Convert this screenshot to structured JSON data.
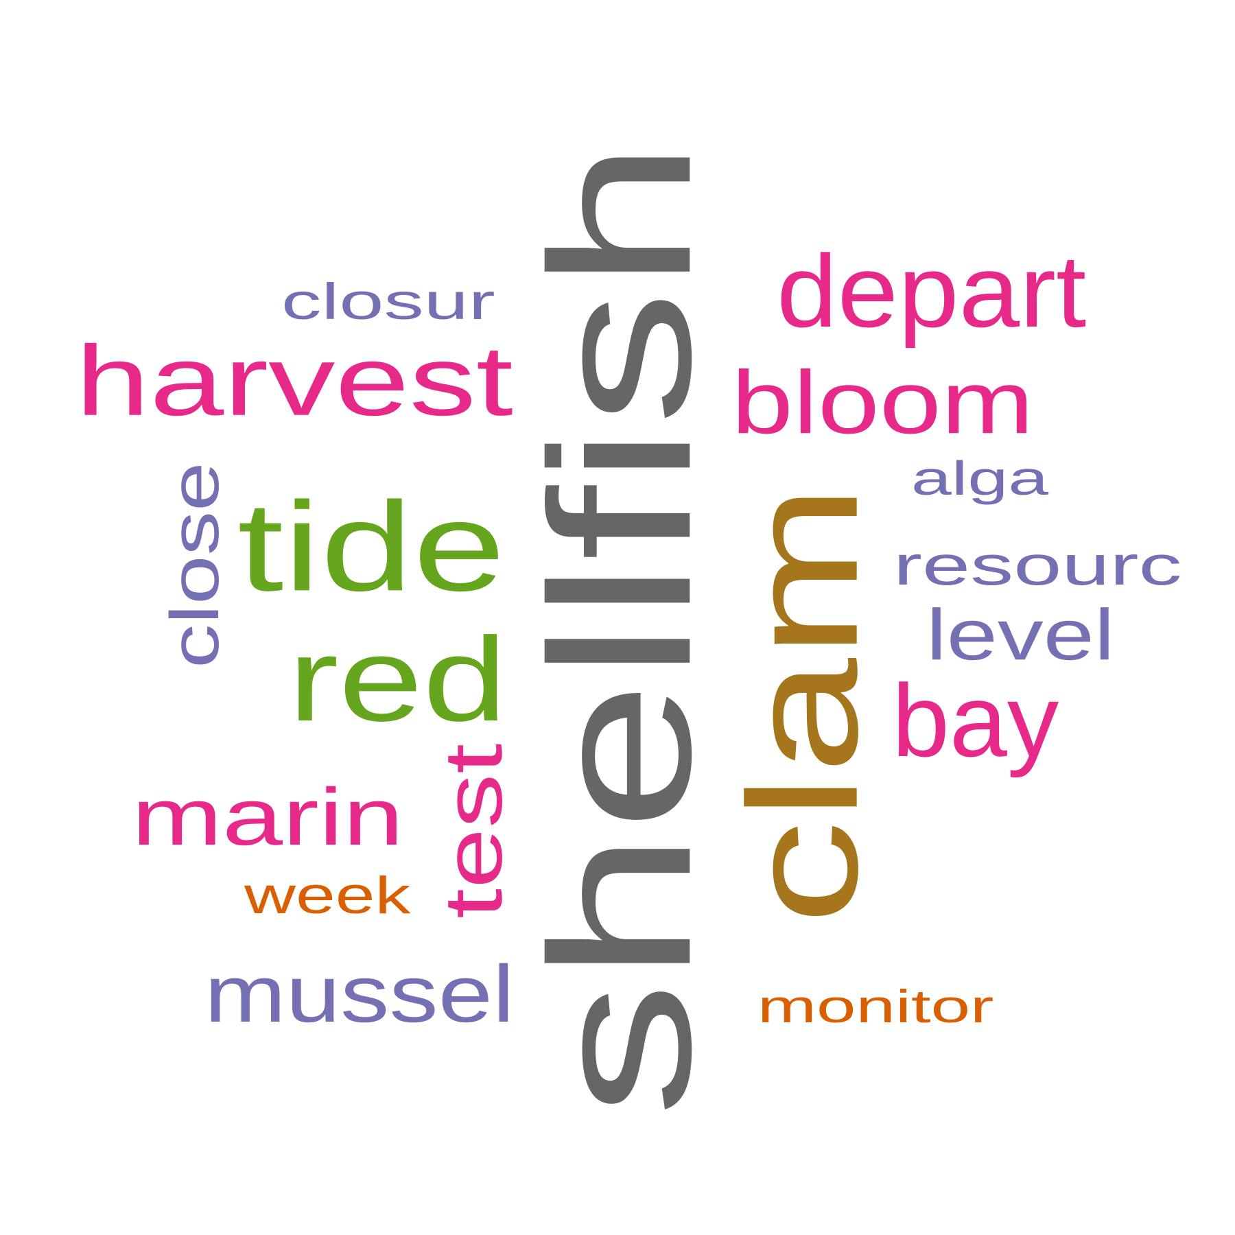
{
  "palette": {
    "gray": "#666666",
    "olive": "#A6761D",
    "green": "#66A61E",
    "magenta": "#E7298A",
    "purple": "#7570B3",
    "orange": "#D95F02"
  },
  "words": [
    {
      "id": "shellfish",
      "text": "shellfish",
      "color": "gray",
      "orientation": "vertical"
    },
    {
      "id": "clam",
      "text": "clam",
      "color": "olive",
      "orientation": "vertical"
    },
    {
      "id": "tide",
      "text": "tide",
      "color": "green",
      "orientation": "horizontal"
    },
    {
      "id": "red",
      "text": "red",
      "color": "green",
      "orientation": "horizontal"
    },
    {
      "id": "harvest",
      "text": "harvest",
      "color": "magenta",
      "orientation": "horizontal"
    },
    {
      "id": "depart",
      "text": "depart",
      "color": "magenta",
      "orientation": "horizontal"
    },
    {
      "id": "bloom",
      "text": "bloom",
      "color": "magenta",
      "orientation": "horizontal"
    },
    {
      "id": "marin",
      "text": "marin",
      "color": "magenta",
      "orientation": "horizontal"
    },
    {
      "id": "test",
      "text": "test",
      "color": "magenta",
      "orientation": "vertical"
    },
    {
      "id": "bay",
      "text": "bay",
      "color": "magenta",
      "orientation": "horizontal"
    },
    {
      "id": "mussel",
      "text": "mussel",
      "color": "purple",
      "orientation": "horizontal"
    },
    {
      "id": "close",
      "text": "close",
      "color": "purple",
      "orientation": "vertical"
    },
    {
      "id": "closur",
      "text": "closur",
      "color": "purple",
      "orientation": "horizontal"
    },
    {
      "id": "resourc",
      "text": "resourc",
      "color": "purple",
      "orientation": "horizontal"
    },
    {
      "id": "level",
      "text": "level",
      "color": "purple",
      "orientation": "horizontal"
    },
    {
      "id": "alga",
      "text": "alga",
      "color": "purple",
      "orientation": "horizontal"
    },
    {
      "id": "monitor",
      "text": "monitor",
      "color": "orange",
      "orientation": "horizontal"
    },
    {
      "id": "week",
      "text": "week",
      "color": "orange",
      "orientation": "horizontal"
    }
  ]
}
